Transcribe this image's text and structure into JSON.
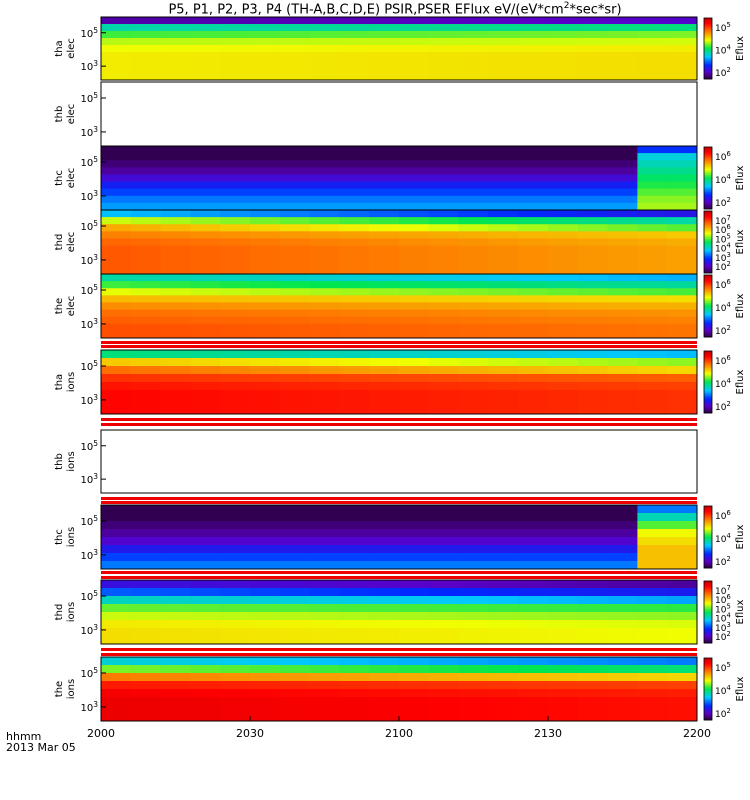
{
  "title": {
    "prefix": "P5, P1, P2, P3, P4 (TH-A,B,C,D,E) PSIR,PSER EFlux eV/(eV*cm",
    "sup": "2",
    "suffix": "*sec*sr)"
  },
  "time_axis": {
    "label_line1": "hhmm",
    "label_line2": "2013 Mar 05",
    "ticks": [
      "2000",
      "2030",
      "2100",
      "2130",
      "2200"
    ]
  },
  "colorbar_label": "Eflux",
  "chart_data": [
    {
      "type": "heatmap",
      "probe": "tha",
      "species": "elec",
      "ylabel": [
        "tha",
        "elec"
      ],
      "yticks": [
        "10^5",
        "10^3"
      ],
      "profile": [
        1.0,
        3.0,
        3.6,
        4.0,
        4.2,
        4.3,
        4.3,
        4.3,
        4.3
      ],
      "trend": 0.15,
      "colorbar": true,
      "cb_ticks": [
        "10^5",
        "10^4",
        "10^2"
      ],
      "cb_range": [
        0.6,
        6.2
      ]
    },
    {
      "type": "heatmap",
      "probe": "thb",
      "species": "elec",
      "ylabel": [
        "thb",
        "elec"
      ],
      "yticks": [
        "10^5",
        "10^3"
      ],
      "profile": null,
      "colorbar": false,
      "cb_ticks": []
    },
    {
      "type": "heatmap",
      "probe": "thc",
      "species": "elec",
      "ylabel": [
        "thc",
        "elec"
      ],
      "yticks": [
        "10^5",
        "10^3"
      ],
      "profile": [
        0.6,
        0.8,
        1.0,
        1.2,
        1.6,
        2.0,
        2.3,
        2.6,
        2.8
      ],
      "trend": 0.0,
      "spike": {
        "from": 18,
        "to": 19,
        "values": [
          2.2,
          3.2,
          3.4,
          3.6,
          3.8,
          4.0,
          4.2,
          4.4,
          4.5
        ]
      },
      "colorbar": true,
      "cb_ticks": [
        "10^6",
        "10^4",
        "10^2"
      ],
      "cb_range": [
        0.8,
        7.0
      ]
    },
    {
      "type": "heatmap",
      "probe": "thd",
      "species": "elec",
      "ylabel": [
        "thd",
        "elec"
      ],
      "yticks": [
        "10^5",
        "10^3"
      ],
      "profile": [
        3.2,
        5.0,
        5.8,
        6.1,
        6.3,
        6.4,
        6.4,
        6.4,
        6.4
      ],
      "trend": -0.9,
      "colorbar": true,
      "cb_ticks": [
        "10^7",
        "10^6",
        "10^5",
        "10^4",
        "10^3",
        "10^2"
      ],
      "cb_range": [
        0.8,
        7.6
      ]
    },
    {
      "type": "heatmap",
      "probe": "the",
      "species": "elec",
      "ylabel": [
        "the",
        "elec"
      ],
      "yticks": [
        "10^5",
        "10^3"
      ],
      "profile": [
        3.4,
        4.0,
        4.6,
        5.1,
        5.4,
        5.6,
        5.7,
        5.8,
        5.8
      ],
      "trend": -0.4,
      "colorbar": true,
      "cb_ticks": [
        "10^6",
        "10^4",
        "10^2"
      ],
      "cb_range": [
        0.8,
        6.8
      ]
    },
    {
      "type": "heatmap",
      "probe": "tha",
      "species": "ions",
      "ylabel": [
        "tha",
        "ions"
      ],
      "yticks": [
        "10^5",
        "10^3"
      ],
      "profile": [
        3.6,
        5.0,
        5.6,
        6.0,
        6.2,
        6.3,
        6.3,
        6.3
      ],
      "trend": -0.5,
      "colorbar": true,
      "cb_ticks": [
        "10^6",
        "10^4",
        "10^2"
      ],
      "cb_range": [
        0.8,
        6.8
      ]
    },
    {
      "type": "heatmap",
      "probe": "thb",
      "species": "ions",
      "ylabel": [
        "thb",
        "ions"
      ],
      "yticks": [
        "10^5",
        "10^3"
      ],
      "profile": null,
      "colorbar": false,
      "cb_ticks": []
    },
    {
      "type": "heatmap",
      "probe": "thc",
      "species": "ions",
      "ylabel": [
        "thc",
        "ions"
      ],
      "yticks": [
        "10^5",
        "10^3"
      ],
      "profile": [
        0.6,
        0.8,
        1.0,
        1.2,
        1.5,
        1.9,
        2.3,
        2.6
      ],
      "trend": 0.0,
      "spike": {
        "from": 18,
        "to": 19,
        "values": [
          2.6,
          3.4,
          4.2,
          4.8,
          5.0,
          5.2,
          5.2,
          5.2
        ]
      },
      "colorbar": true,
      "cb_ticks": [
        "10^6",
        "10^4",
        "10^2"
      ],
      "cb_range": [
        0.8,
        7.0
      ]
    },
    {
      "type": "heatmap",
      "probe": "thd",
      "species": "ions",
      "ylabel": [
        "thd",
        "ions"
      ],
      "yticks": [
        "10^5",
        "10^3"
      ],
      "profile": [
        1.8,
        2.6,
        3.6,
        4.6,
        5.0,
        5.3,
        5.4,
        5.4
      ],
      "trend": -0.4,
      "colorbar": true,
      "cb_ticks": [
        "10^7",
        "10^6",
        "10^5",
        "10^4",
        "10^3",
        "10^2"
      ],
      "cb_range": [
        0.8,
        7.6
      ]
    },
    {
      "type": "heatmap",
      "probe": "the",
      "species": "ions",
      "ylabel": [
        "the",
        "ions"
      ],
      "yticks": [
        "10^5",
        "10^3"
      ],
      "profile": [
        3.0,
        4.0,
        5.2,
        5.8,
        6.0,
        6.1,
        6.1,
        6.1
      ],
      "trend": -0.4,
      "colorbar": true,
      "cb_ticks": [
        "10^5",
        "10^4",
        "10^2"
      ],
      "cb_range": [
        0.8,
        6.4
      ]
    }
  ]
}
